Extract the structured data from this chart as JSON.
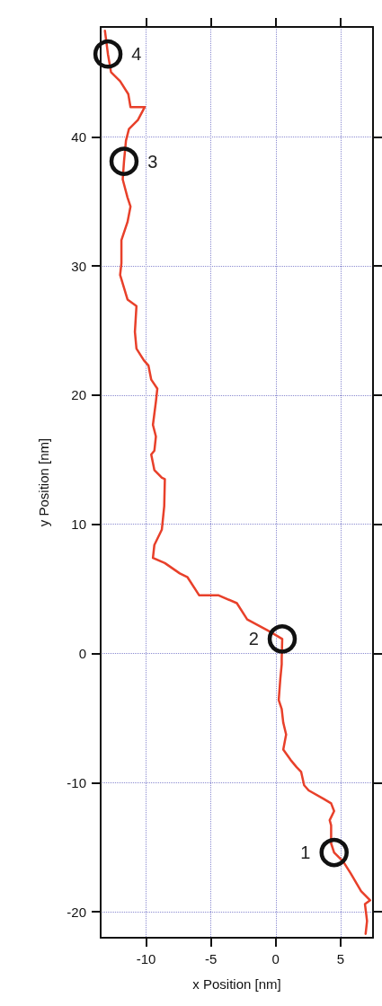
{
  "chart_data": {
    "type": "line",
    "xlabel": "x Position [nm]",
    "ylabel": "y Position [nm]",
    "color": "#e8402a",
    "marker": "none",
    "line_style": "solid",
    "grid": true,
    "x": [
      6.93,
      7.04,
      6.88,
      7.28,
      6.58,
      5.77,
      5.2,
      4.5,
      4.27,
      4.27,
      4.16,
      4.5,
      4.27,
      3.69,
      2.54,
      2.19,
      1.96,
      1.61,
      1.15,
      0.58,
      0.8,
      0.58,
      0.46,
      0.23,
      0.35,
      0.46,
      0.46,
      0.5,
      -0.46,
      -2.2,
      -3.0,
      -4.4,
      -5.9,
      -6.8,
      -7.4,
      -8.55,
      -9.47,
      -9.36,
      -8.78,
      -8.6,
      -8.55,
      -8.78,
      -9.36,
      -9.6,
      -9.36,
      -9.24,
      -9.47,
      -9.24,
      -9.13,
      -9.6,
      -9.82,
      -10.17,
      -10.74,
      -10.86,
      -10.74,
      -11.43,
      -12.0,
      -11.9,
      -11.9,
      -11.43,
      -11.2,
      -11.43,
      -11.8,
      -11.7,
      -11.55,
      -11.32,
      -10.63,
      -10.1,
      -11.2,
      -11.37,
      -12.0,
      -12.7,
      -12.94,
      -13.17
    ],
    "values": [
      -21.7,
      -20.7,
      -19.4,
      -19.1,
      -18.4,
      -17.0,
      -16.1,
      -15.4,
      -14.7,
      -13.3,
      -12.9,
      -12.2,
      -11.6,
      -11.25,
      -10.6,
      -10.2,
      -9.17,
      -8.8,
      -8.24,
      -7.43,
      -6.27,
      -5.35,
      -4.3,
      -3.6,
      -2.0,
      -0.83,
      -0.37,
      1.13,
      1.7,
      2.64,
      3.9,
      4.5,
      4.5,
      5.9,
      6.2,
      7.0,
      7.4,
      8.4,
      9.6,
      11.4,
      13.5,
      13.6,
      14.2,
      15.4,
      15.7,
      16.8,
      17.7,
      19.5,
      20.5,
      21.2,
      22.3,
      22.7,
      23.6,
      24.9,
      26.9,
      27.4,
      29.3,
      30.2,
      32.0,
      33.4,
      34.6,
      35.3,
      36.7,
      38.1,
      39.7,
      40.6,
      41.3,
      42.3,
      42.3,
      43.3,
      44.3,
      45.0,
      46.4,
      48.2
    ],
    "annotations": [
      {
        "text": "1",
        "x": 4.5,
        "y": -15.4
      },
      {
        "text": "2",
        "x": 0.5,
        "y": 1.13
      },
      {
        "text": "3",
        "x": -11.7,
        "y": 38.1
      },
      {
        "text": "4",
        "x": -12.94,
        "y": 46.4
      }
    ],
    "xlim": [
      -13.5,
      7.5
    ],
    "xticks": [
      -10,
      -5,
      0,
      5
    ],
    "ylim": [
      -22,
      48.5
    ],
    "yticks": [
      -20,
      -10,
      0,
      10,
      20,
      30,
      40
    ],
    "tick_labels": [
      "x",
      "y"
    ]
  }
}
